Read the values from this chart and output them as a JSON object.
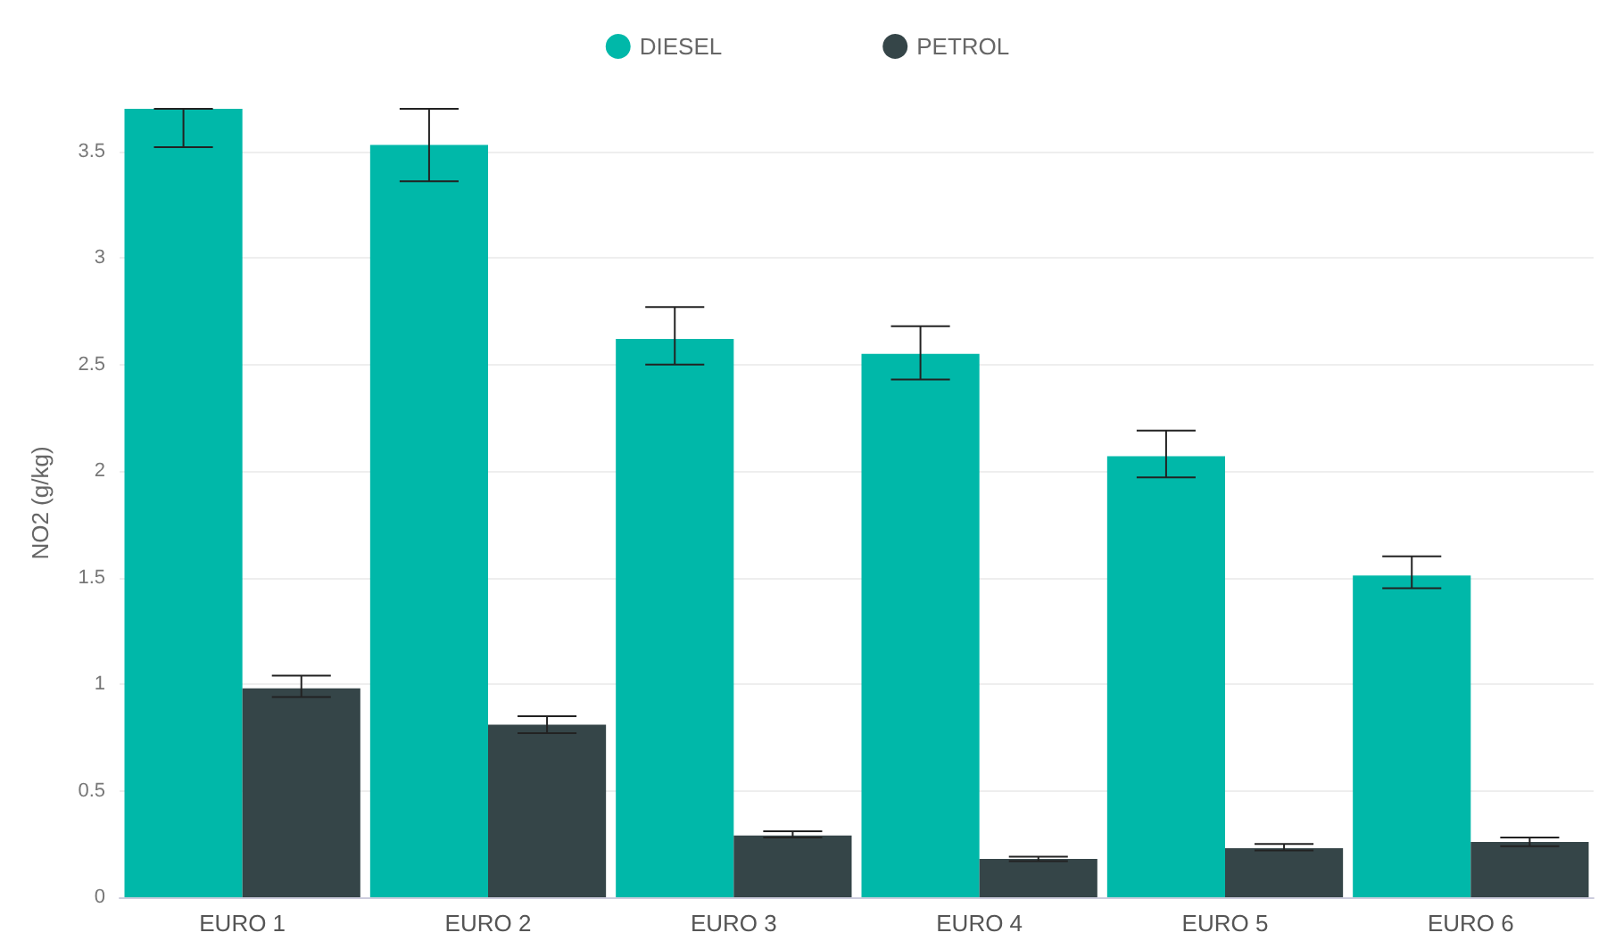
{
  "chart_data": {
    "type": "bar",
    "ylabel": "NO2 (g/kg)",
    "categories": [
      "EURO 1",
      "EURO 2",
      "EURO 3",
      "EURO 4",
      "EURO 5",
      "EURO 6"
    ],
    "series": [
      {
        "name": "DIESEL",
        "color": "#00b8a9",
        "values": [
          3.7,
          3.53,
          2.62,
          2.55,
          2.07,
          1.51
        ],
        "errors": [
          [
            3.52,
            3.7
          ],
          [
            3.36,
            3.7
          ],
          [
            2.5,
            2.77
          ],
          [
            2.43,
            2.68
          ],
          [
            1.97,
            2.19
          ],
          [
            1.45,
            1.6
          ]
        ]
      },
      {
        "name": "PETROL",
        "color": "#354548",
        "values": [
          0.98,
          0.81,
          0.29,
          0.18,
          0.23,
          0.26
        ],
        "errors": [
          [
            0.94,
            1.04
          ],
          [
            0.77,
            0.85
          ],
          [
            0.28,
            0.31
          ],
          [
            0.17,
            0.19
          ],
          [
            0.22,
            0.25
          ],
          [
            0.24,
            0.28
          ]
        ]
      }
    ],
    "ylim": [
      0,
      3.7
    ],
    "yticks": [
      0,
      0.5,
      1,
      1.5,
      2,
      2.5,
      3,
      3.5
    ],
    "grid": "y",
    "legend": "top"
  }
}
